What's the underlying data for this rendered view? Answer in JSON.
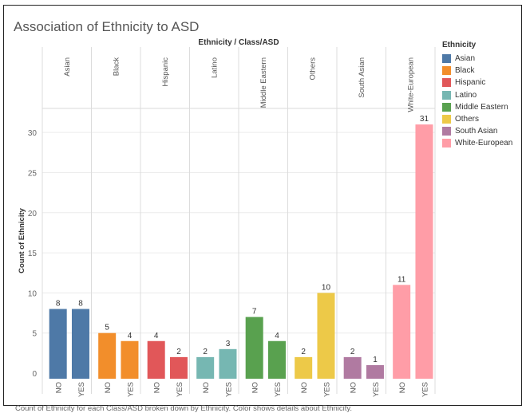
{
  "title": "Association of Ethnicity to ASD",
  "caption": "Count of Ethnicity for each Class/ASD broken down by Ethnicity.  Color shows details about Ethnicity.",
  "legend": {
    "title": "Ethnicity",
    "items": [
      {
        "label": "Asian",
        "color": "#4e79a7"
      },
      {
        "label": "Black",
        "color": "#f28e2b"
      },
      {
        "label": "Hispanic",
        "color": "#e15759"
      },
      {
        "label": "Latino",
        "color": "#76b7b2"
      },
      {
        "label": "Middle Eastern",
        "color": "#59a14f"
      },
      {
        "label": "Others",
        "color": "#edc948"
      },
      {
        "label": "South Asian",
        "color": "#b07aa1"
      },
      {
        "label": "White-European",
        "color": "#ff9da7"
      }
    ]
  },
  "chart_data": {
    "type": "bar",
    "title": "Association of Ethnicity to ASD",
    "column_header": "Ethnicity / Class/ASD",
    "ylabel": "Count of Ethnicity",
    "ylim": [
      0,
      33
    ],
    "yticks": [
      0,
      5,
      10,
      15,
      20,
      25,
      30
    ],
    "grid": true,
    "legend_position": "right",
    "groups": [
      {
        "name": "Asian",
        "color": "#4e79a7",
        "categories": [
          "NO",
          "YES"
        ],
        "values": [
          8,
          8
        ]
      },
      {
        "name": "Black",
        "color": "#f28e2b",
        "categories": [
          "NO",
          "YES"
        ],
        "values": [
          5,
          4
        ]
      },
      {
        "name": "Hispanic",
        "color": "#e15759",
        "categories": [
          "NO",
          "YES"
        ],
        "values": [
          4,
          2
        ]
      },
      {
        "name": "Latino",
        "color": "#76b7b2",
        "categories": [
          "NO",
          "YES"
        ],
        "values": [
          2,
          3
        ]
      },
      {
        "name": "Middle Eastern",
        "color": "#59a14f",
        "categories": [
          "NO",
          "YES"
        ],
        "values": [
          7,
          4
        ]
      },
      {
        "name": "Others",
        "color": "#edc948",
        "categories": [
          "NO",
          "YES"
        ],
        "values": [
          2,
          10
        ]
      },
      {
        "name": "South Asian",
        "color": "#b07aa1",
        "categories": [
          "NO",
          "YES"
        ],
        "values": [
          2,
          1
        ]
      },
      {
        "name": "White-European",
        "color": "#ff9da7",
        "categories": [
          "NO",
          "YES"
        ],
        "values": [
          11,
          31
        ]
      }
    ]
  }
}
